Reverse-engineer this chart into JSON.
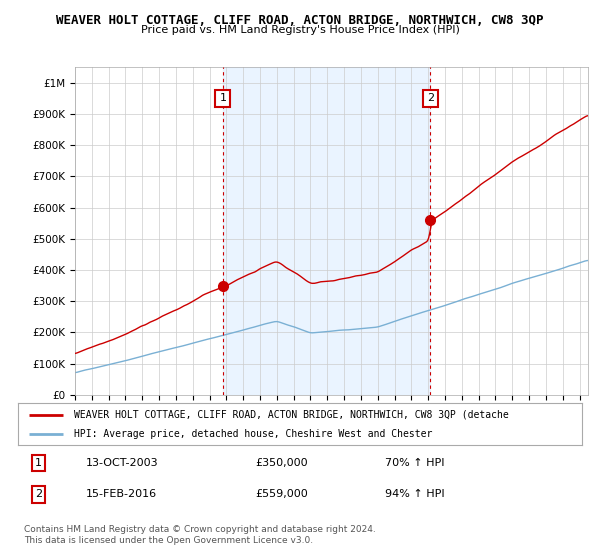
{
  "title": "WEAVER HOLT COTTAGE, CLIFF ROAD, ACTON BRIDGE, NORTHWICH, CW8 3QP",
  "subtitle": "Price paid vs. HM Land Registry's House Price Index (HPI)",
  "legend_line1": "WEAVER HOLT COTTAGE, CLIFF ROAD, ACTON BRIDGE, NORTHWICH, CW8 3QP (detache",
  "legend_line2": "HPI: Average price, detached house, Cheshire West and Chester",
  "annotation1_label": "1",
  "annotation1_date": "13-OCT-2003",
  "annotation1_price": "£350,000",
  "annotation1_hpi": "70% ↑ HPI",
  "annotation2_label": "2",
  "annotation2_date": "15-FEB-2016",
  "annotation2_price": "£559,000",
  "annotation2_hpi": "94% ↑ HPI",
  "footer": "Contains HM Land Registry data © Crown copyright and database right 2024.\nThis data is licensed under the Open Government Licence v3.0.",
  "ylim": [
    0,
    1050000
  ],
  "yticks": [
    0,
    100000,
    200000,
    300000,
    400000,
    500000,
    600000,
    700000,
    800000,
    900000,
    1000000
  ],
  "ytick_labels": [
    "£0",
    "£100K",
    "£200K",
    "£300K",
    "£400K",
    "£500K",
    "£600K",
    "£700K",
    "£800K",
    "£900K",
    "£1M"
  ],
  "hpi_color": "#7ab0d4",
  "price_color": "#cc0000",
  "vline_color": "#cc0000",
  "shade_color": "#ddeeff",
  "grid_color": "#cccccc",
  "purchase1_x": 2003.79,
  "purchase1_y": 350000,
  "purchase2_x": 2016.12,
  "purchase2_y": 559000,
  "xlim_left": 1995.0,
  "xlim_right": 2025.5
}
